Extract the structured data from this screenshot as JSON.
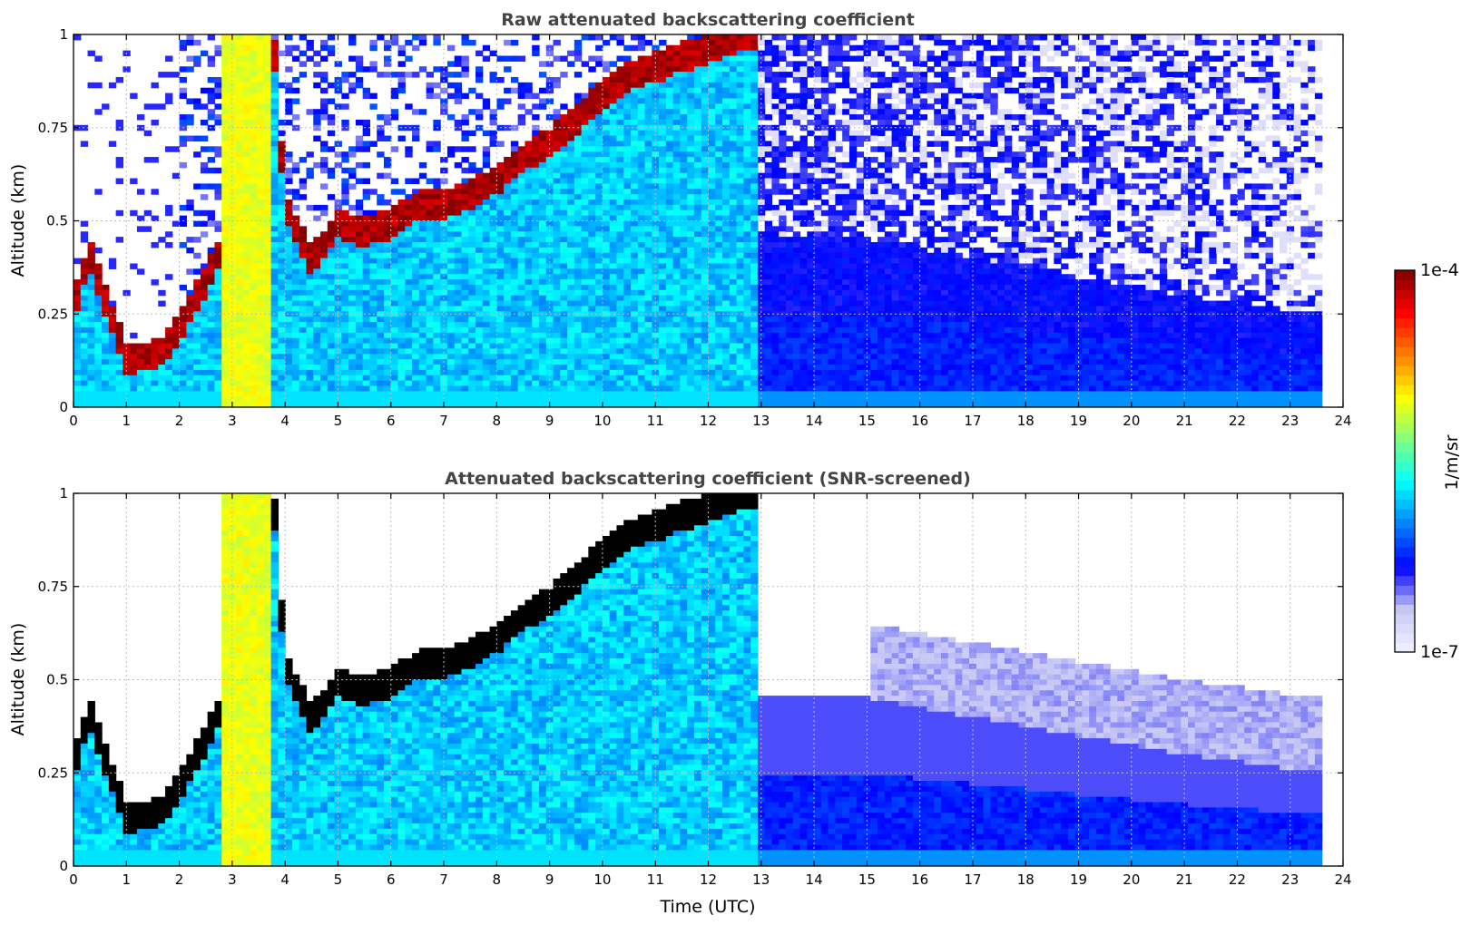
{
  "colors": {
    "background": "#ffffff",
    "title_text": "#444444",
    "jet_stops": [
      "#f2f2ff",
      "#c8c8f5",
      "#0000ff",
      "#0080ff",
      "#00ffff",
      "#80ff80",
      "#ffff00",
      "#ff8000",
      "#ff0000",
      "#800000"
    ],
    "snr_dense_layer": "#000000"
  },
  "chart_data": [
    {
      "type": "heatmap",
      "id": "raw",
      "title": "Raw attenuated backscattering coefficient",
      "xlabel": "",
      "ylabel": "Altitude (km)",
      "xlim": [
        0,
        24
      ],
      "ylim": [
        0,
        1
      ],
      "x_ticks": [
        "0",
        "1",
        "2",
        "3",
        "4",
        "5",
        "6",
        "7",
        "8",
        "9",
        "10",
        "11",
        "12",
        "13",
        "14",
        "15",
        "16",
        "17",
        "18",
        "19",
        "20",
        "21",
        "22",
        "23",
        "24"
      ],
      "y_ticks": [
        "0",
        "0.25",
        "0.5",
        "0.75",
        "1"
      ],
      "grid": true,
      "data_end_utc": 23.6,
      "layer_top_km": {
        "time_utc": [
          0,
          0.3,
          0.6,
          1.0,
          1.6,
          2.0,
          2.5,
          2.85,
          3.8,
          4.0,
          4.5,
          5.0,
          5.5,
          6.0,
          6.5,
          7.0,
          7.5,
          8.0,
          8.5,
          9.0,
          9.5,
          10.0,
          10.5,
          11.0,
          11.5,
          12.0,
          12.5,
          13.0
        ],
        "altitude_km": [
          0.28,
          0.42,
          0.3,
          0.14,
          0.15,
          0.22,
          0.35,
          0.45,
          0.95,
          0.55,
          0.4,
          0.5,
          0.48,
          0.5,
          0.55,
          0.55,
          0.58,
          0.62,
          0.68,
          0.72,
          0.78,
          0.85,
          0.9,
          0.92,
          0.95,
          0.97,
          1.0,
          1.0
        ]
      },
      "aerosol_column_top_km": {
        "time_utc": [
          13.0,
          15.0,
          17.0,
          19.0,
          21.0,
          23.6
        ],
        "altitude_km": [
          0.45,
          0.45,
          0.4,
          0.35,
          0.3,
          0.25
        ]
      }
    },
    {
      "type": "heatmap",
      "id": "snr",
      "title": "Attenuated backscattering coefficient (SNR-screened)",
      "xlabel": "Time (UTC)",
      "ylabel": "Altitude (km)",
      "xlim": [
        0,
        24
      ],
      "ylim": [
        0,
        1
      ],
      "x_ticks": [
        "0",
        "1",
        "2",
        "3",
        "4",
        "5",
        "6",
        "7",
        "8",
        "9",
        "10",
        "11",
        "12",
        "13",
        "14",
        "15",
        "16",
        "17",
        "18",
        "19",
        "20",
        "21",
        "22",
        "23",
        "24"
      ],
      "y_ticks": [
        "0",
        "0.25",
        "0.5",
        "0.75",
        "1"
      ],
      "grid": true,
      "data_end_utc": 23.6
    }
  ],
  "colorbar": {
    "label": "1/m/sr",
    "max_label": "1e-4",
    "min_label": "1e-7",
    "levels": 40
  }
}
